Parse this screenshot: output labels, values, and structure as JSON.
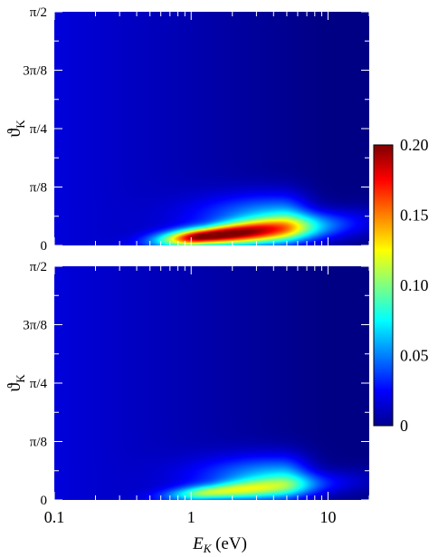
{
  "chart_data": [
    {
      "type": "heatmap",
      "panel": "top",
      "title": "",
      "x_label": "E_K (eV)",
      "x_label_parts": {
        "symbol": "E",
        "subscript": "K",
        "unit": " (eV)"
      },
      "x_scale": "log",
      "x_range": [
        0.1,
        20
      ],
      "x_tick_labels": [],
      "y_label": "ϑ_K",
      "y_label_parts": {
        "symbol": "ϑ",
        "subscript": "K"
      },
      "y_range": [
        0,
        1.5708
      ],
      "y_tick_values": [
        0,
        0.3927,
        0.7854,
        1.1781,
        1.5708
      ],
      "y_tick_labels": [
        "0",
        "π/8",
        "π/4",
        "3π/8",
        "π/2"
      ],
      "color_range": [
        0,
        0.2
      ],
      "features": [
        {
          "kind": "ridge",
          "E_at_peak_eV": 1.25,
          "theta_at_peak_rad": 0.06,
          "peak_value": 0.19,
          "width_logE": 0.55,
          "width_theta": 0.04,
          "slope": 0.08
        },
        {
          "kind": "lobe",
          "E_at_peak_eV": 4.5,
          "theta_at_peak_rad": 0.18,
          "peak_value": 0.06,
          "width_logE": 0.25,
          "width_theta": 0.11
        },
        {
          "kind": "background",
          "value_low_E": 0.018,
          "value_high_E": 0.001,
          "cutoff_E_eV": 9.5
        }
      ]
    },
    {
      "type": "heatmap",
      "panel": "bottom",
      "title": "",
      "x_label": "E_K (eV)",
      "x_scale": "log",
      "x_range": [
        0.1,
        20
      ],
      "x_tick_values": [
        0.1,
        1,
        10
      ],
      "x_tick_labels": [
        "0.1",
        "1",
        "10"
      ],
      "y_label": "ϑ_K",
      "y_range": [
        0,
        1.5708
      ],
      "y_tick_values": [
        0,
        0.3927,
        0.7854,
        1.1781,
        1.5708
      ],
      "y_tick_labels": [
        "0",
        "π/8",
        "π/4",
        "3π/8",
        "π/2"
      ],
      "color_range": [
        0,
        0.2
      ],
      "features": [
        {
          "kind": "ridge",
          "E_at_peak_eV": 1.4,
          "theta_at_peak_rad": 0.05,
          "peak_value": 0.09,
          "width_logE": 0.55,
          "width_theta": 0.035,
          "slope": 0.07
        },
        {
          "kind": "lobe",
          "E_at_peak_eV": 4.5,
          "theta_at_peak_rad": 0.15,
          "peak_value": 0.06,
          "width_logE": 0.25,
          "width_theta": 0.1
        },
        {
          "kind": "background",
          "value_low_E": 0.018,
          "value_high_E": 0.001,
          "cutoff_E_eV": 9.5
        }
      ]
    }
  ],
  "colorbar": {
    "colormap": "jet",
    "range": [
      0,
      0.2
    ],
    "tick_values": [
      0,
      0.05,
      0.1,
      0.15,
      0.2
    ],
    "tick_labels": [
      "0",
      "0.05",
      "0.10",
      "0.15",
      "0.20"
    ]
  }
}
